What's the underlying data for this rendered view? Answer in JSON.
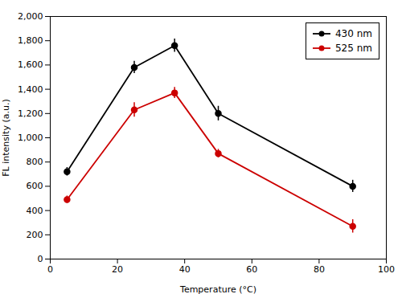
{
  "chart_data": {
    "type": "line",
    "xlabel": "Temperature (°C)",
    "ylabel": "FL intensity (a.u.)",
    "x": [
      5,
      25,
      37,
      50,
      90
    ],
    "series": [
      {
        "name": "430 nm",
        "color": "#000000",
        "values": [
          720,
          1580,
          1760,
          1200,
          600
        ],
        "errors": [
          35,
          50,
          55,
          60,
          50
        ]
      },
      {
        "name": "525 nm",
        "color": "#cc0000",
        "values": [
          490,
          1230,
          1370,
          870,
          270
        ],
        "errors": [
          30,
          60,
          45,
          35,
          55
        ]
      }
    ],
    "xlim": [
      0,
      100
    ],
    "ylim": [
      0,
      2000
    ],
    "xticks": [
      0,
      20,
      40,
      60,
      80,
      100
    ],
    "yticks": [
      0,
      200,
      400,
      600,
      800,
      1000,
      1200,
      1400,
      1600,
      1800,
      2000
    ],
    "marker": "circle",
    "legend": "upper right",
    "grid": false
  }
}
